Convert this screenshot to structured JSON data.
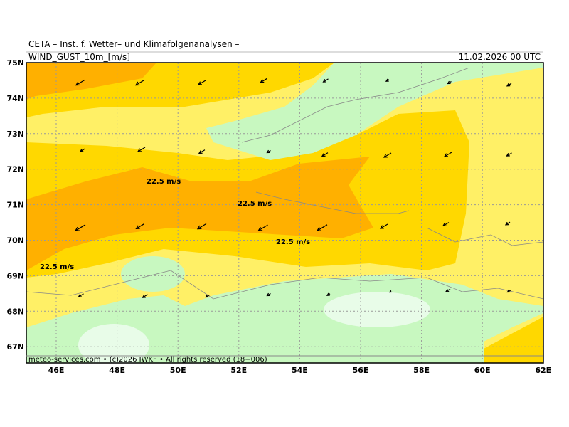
{
  "header": {
    "institute": "CETA – Inst. f. Wetter– und Klimafolgenanalysen –",
    "field": "WIND_GUST_10m_[m/s]",
    "valid_time": "11.02.2026 00 UTC"
  },
  "lat_labels": [
    "75N",
    "74N",
    "73N",
    "72N",
    "71N",
    "70N",
    "69N",
    "68N",
    "67N"
  ],
  "lon_labels": [
    "46E",
    "48E",
    "50E",
    "52E",
    "54E",
    "56E",
    "58E",
    "60E",
    "62E"
  ],
  "contour_labels": [
    "22.5 m/s",
    "22.5 m/s",
    "22.5 m/s",
    "22.5 m/s"
  ],
  "footer": "meteo-services.com • (c)2026 IWKF • All rights reserved (18+006)"
}
